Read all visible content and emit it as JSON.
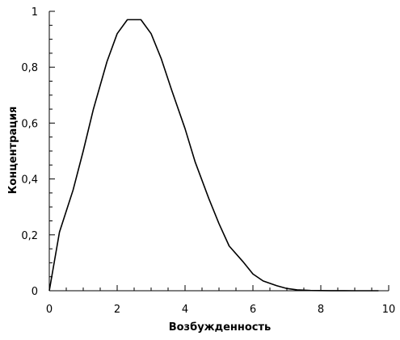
{
  "chart_data": {
    "type": "line",
    "xlabel": "Возбужденность",
    "ylabel": "Концентрация",
    "xlim": [
      0,
      10
    ],
    "ylim": [
      0,
      1
    ],
    "x_ticks": [
      0,
      2,
      4,
      6,
      8,
      10
    ],
    "x_tick_labels": [
      "0",
      "2",
      "4",
      "6",
      "8",
      "10"
    ],
    "y_ticks": [
      0,
      0.2,
      0.4,
      0.6,
      0.8,
      1
    ],
    "y_tick_labels": [
      "0",
      "0,2",
      "0,4",
      "0,6",
      "0,8",
      "1"
    ],
    "grid": false,
    "series": [
      {
        "color": "#000000",
        "x": [
          0,
          0.3,
          0.7,
          1.0,
          1.3,
          1.7,
          2.0,
          2.3,
          2.4,
          2.7,
          3.0,
          3.3,
          3.6,
          4.0,
          4.3,
          4.7,
          5.0,
          5.3,
          5.7,
          6.0,
          6.3,
          6.7,
          7.0,
          7.3,
          7.7,
          8.0,
          8.3,
          8.7,
          9.0,
          9.3,
          9.7
        ],
        "y": [
          0,
          0.21,
          0.36,
          0.5,
          0.65,
          0.82,
          0.92,
          0.97,
          0.97,
          0.97,
          0.92,
          0.83,
          0.72,
          0.58,
          0.46,
          0.33,
          0.24,
          0.16,
          0.105,
          0.06,
          0.035,
          0.018,
          0.008,
          0.003,
          0.001,
          0.0005,
          0.0002,
          0.0001,
          0.0,
          0.0,
          0.0
        ]
      }
    ]
  }
}
